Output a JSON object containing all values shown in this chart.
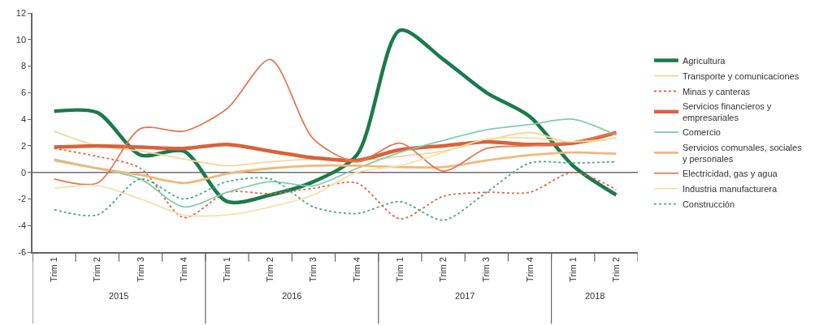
{
  "chart_data": {
    "type": "line",
    "categories": [
      "Trim 1",
      "Trim 2",
      "Trim 3",
      "Trim 4",
      "Trim 1",
      "Trim 2",
      "Trim 3",
      "Trim 4",
      "Trim 1",
      "Trim 2",
      "Trim 3",
      "Trim 4",
      "Trim 1",
      "Trim 2"
    ],
    "annotations": [
      "2015",
      "2016",
      "2017",
      "2018"
    ],
    "ylim": [
      -6,
      12
    ],
    "yticks": [
      -6,
      -4,
      -2,
      0,
      2,
      4,
      6,
      8,
      10,
      12
    ],
    "grid": false,
    "legend": "right",
    "marker": "none",
    "ref_lines": [
      {
        "axis": "y",
        "value": 0,
        "color": "#6e6e6e"
      }
    ],
    "series": [
      {
        "name": "Agricultura",
        "color": "#1a7a4c",
        "values": [
          4.6,
          4.5,
          1.3,
          1.6,
          -2.2,
          -1.7,
          -0.7,
          1.3,
          10.7,
          8.5,
          6.0,
          4.2,
          0.5,
          -1.7
        ]
      },
      {
        "name": "Transporte y comunicaciones",
        "color": "#f3d9a0",
        "values": [
          3.1,
          2.0,
          1.6,
          1.0,
          0.5,
          0.8,
          1.0,
          0.9,
          1.2,
          1.6,
          2.4,
          3.0,
          2.2,
          2.6
        ]
      },
      {
        "name": "Minas y canteras",
        "color": "#d9694a",
        "line_style": "dotted",
        "values": [
          1.8,
          1.2,
          0.3,
          -3.4,
          -1.5,
          -1.6,
          -1.2,
          -0.8,
          -3.5,
          -1.8,
          -1.5,
          -1.5,
          0.0,
          -1.3
        ]
      },
      {
        "name": "Servicios financieros y empresariales",
        "color": "#d9623b",
        "values": [
          1.9,
          2.0,
          1.9,
          1.8,
          2.1,
          1.6,
          1.1,
          0.9,
          1.7,
          2.0,
          2.3,
          2.1,
          2.2,
          3.0
        ]
      },
      {
        "name": "Comercio",
        "color": "#7fcdb0",
        "values": [
          1.0,
          0.3,
          -0.5,
          -2.6,
          -1.5,
          -0.7,
          -1.0,
          0.3,
          1.5,
          2.4,
          3.2,
          3.6,
          4.0,
          2.8
        ]
      },
      {
        "name": "Servicios comunales, sociales y personales",
        "color": "#f0b87a",
        "values": [
          0.9,
          0.3,
          -0.2,
          -0.8,
          -0.1,
          0.3,
          0.5,
          0.5,
          0.4,
          0.4,
          0.9,
          1.3,
          1.5,
          1.4
        ]
      },
      {
        "name": "Electricidad, gas y agua",
        "color": "#e07b54",
        "values": [
          -0.5,
          -0.8,
          3.3,
          3.1,
          4.8,
          8.5,
          2.5,
          0.8,
          2.2,
          0.1,
          1.8,
          2.0,
          2.3,
          3.0
        ]
      },
      {
        "name": "Industria manufacturera",
        "color": "#f6e0a8",
        "values": [
          -1.2,
          -1.0,
          -2.0,
          -3.2,
          -3.2,
          -2.6,
          -1.7,
          0.0,
          0.5,
          1.5,
          2.5,
          2.6,
          2.3,
          2.6
        ]
      },
      {
        "name": "Construcción",
        "color": "#4aa88a",
        "line_style": "dotted",
        "values": [
          -2.8,
          -3.2,
          -0.5,
          -2.0,
          -0.7,
          -0.5,
          -2.6,
          -3.1,
          -2.2,
          -3.6,
          -1.5,
          0.7,
          0.7,
          0.8
        ]
      }
    ]
  }
}
